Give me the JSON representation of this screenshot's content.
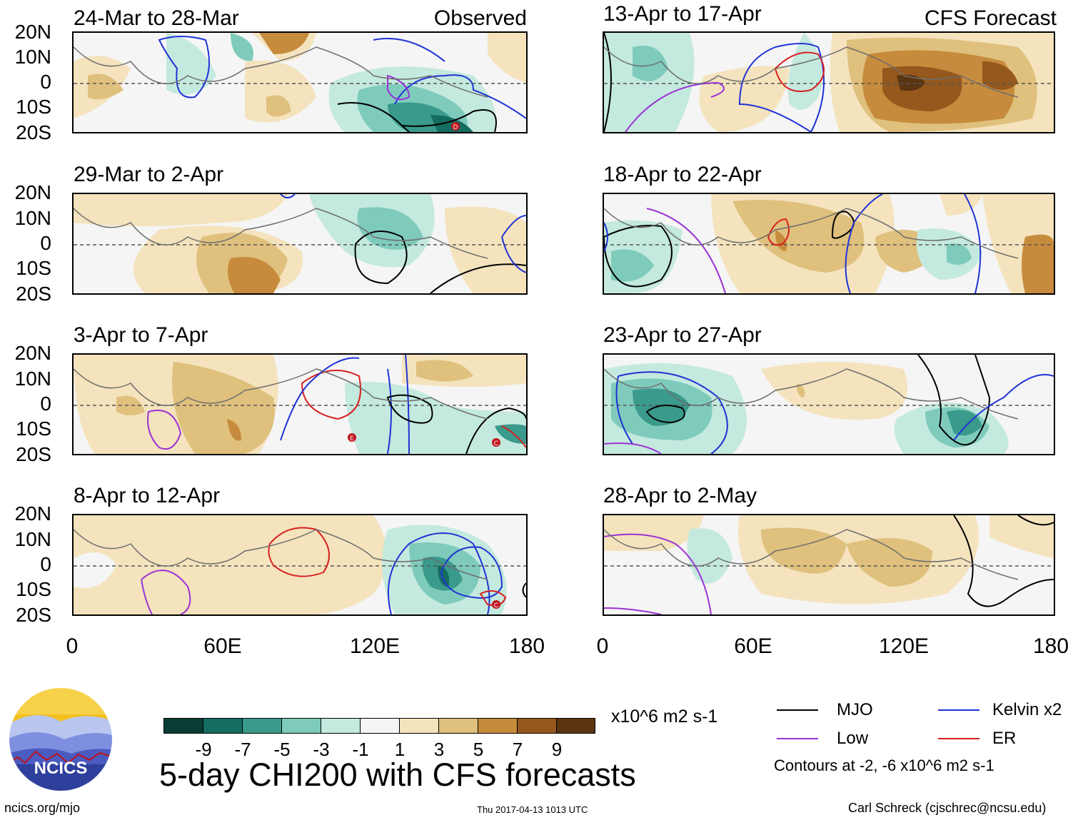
{
  "figure": {
    "main_title": "5-day CHI200 with CFS forecasts",
    "units": "x10^6 m2 s-1",
    "site": "ncics.org/mjo",
    "timestamp": "Thu 2017-04-13 1013 UTC",
    "author": "Carl Schreck (cjschrec@ncsu.edu)",
    "logo_text": "NCICS",
    "column_labels": {
      "left": "Observed",
      "right": "CFS Forecast"
    }
  },
  "axes": {
    "lat_ticks": [
      "20N",
      "10N",
      "0",
      "10S",
      "20S"
    ],
    "lon_ticks": [
      "0",
      "60E",
      "120E",
      "180"
    ]
  },
  "panels": [
    {
      "title": "24-Mar to 28-Mar",
      "kind": "observed"
    },
    {
      "title": "29-Mar to 2-Apr",
      "kind": "observed"
    },
    {
      "title": "3-Apr to 7-Apr",
      "kind": "observed"
    },
    {
      "title": "8-Apr to 12-Apr",
      "kind": "observed"
    },
    {
      "title": "13-Apr to 17-Apr",
      "kind": "forecast"
    },
    {
      "title": "18-Apr to 22-Apr",
      "kind": "forecast"
    },
    {
      "title": "23-Apr to 27-Apr",
      "kind": "forecast"
    },
    {
      "title": "28-Apr to 2-May",
      "kind": "forecast"
    }
  ],
  "colorbar": {
    "ticks": [
      "-9",
      "-7",
      "-5",
      "-3",
      "-1",
      "1",
      "3",
      "5",
      "7",
      "9"
    ],
    "colors": [
      "#0a3d35",
      "#156c60",
      "#3a9a8c",
      "#7fcbbb",
      "#c4e9df",
      "#f5f5f5",
      "#f4e3bd",
      "#dfc07d",
      "#c68b3c",
      "#95581d",
      "#5b3410"
    ]
  },
  "legend": {
    "items": [
      {
        "label": "MJO",
        "color": "#000000"
      },
      {
        "label": "Kelvin x2",
        "color": "#1f33d6"
      },
      {
        "label": "Low",
        "color": "#9b32d4"
      },
      {
        "label": "ER",
        "color": "#d82020"
      }
    ],
    "note": "Contours at -2, -6 x10^6 m2 s-1"
  },
  "storm_markers": [
    "D",
    "E",
    "C",
    "C"
  ],
  "colors": {
    "coast": "#6e6e6e",
    "equator": "#555555"
  }
}
